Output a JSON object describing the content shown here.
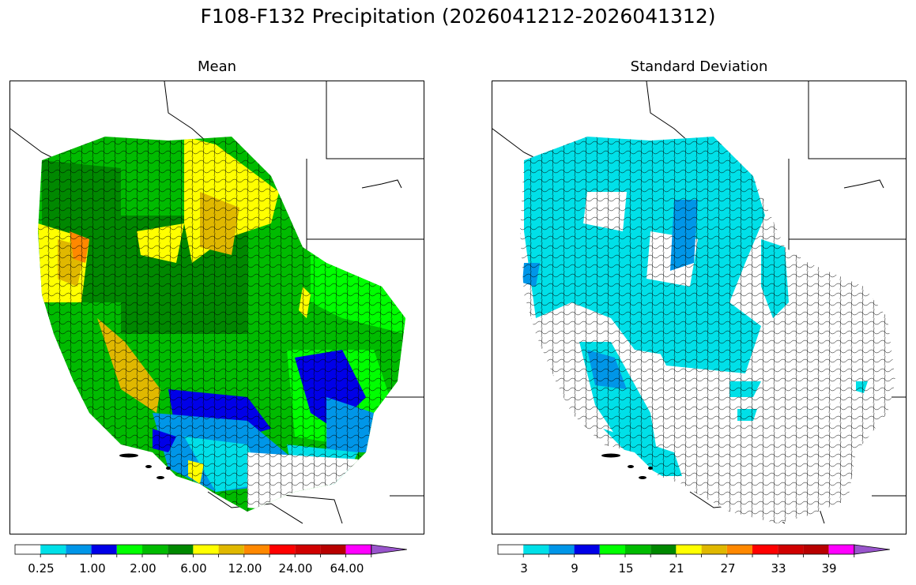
{
  "figure": {
    "title": "F108-F132 Precipitation (2026041212-2026041312)"
  },
  "panels": [
    {
      "title": "Mean",
      "colorbar": {
        "colors": [
          "#ffffff",
          "#00e0e8",
          "#0096e8",
          "#0000e8",
          "#00ff00",
          "#00bb00",
          "#008800",
          "#ffff00",
          "#e0b800",
          "#ff8800",
          "#ff0000",
          "#d00000",
          "#b80000",
          "#ff00ff",
          "#9955cc"
        ],
        "tick_labels": [
          "0.25",
          "1.00",
          "2.00",
          "6.00",
          "12.00",
          "24.00",
          "64.00"
        ],
        "extend": "max"
      }
    },
    {
      "title": "Standard Deviation",
      "colorbar": {
        "colors": [
          "#ffffff",
          "#00e0e8",
          "#0096e8",
          "#0000e8",
          "#00ff00",
          "#00bb00",
          "#008800",
          "#ffff00",
          "#e0b800",
          "#ff8800",
          "#ff0000",
          "#d00000",
          "#b80000",
          "#ff00ff",
          "#9955cc"
        ],
        "tick_labels": [
          "3",
          "9",
          "15",
          "21",
          "27",
          "33",
          "39"
        ],
        "extend": "max"
      }
    }
  ]
}
